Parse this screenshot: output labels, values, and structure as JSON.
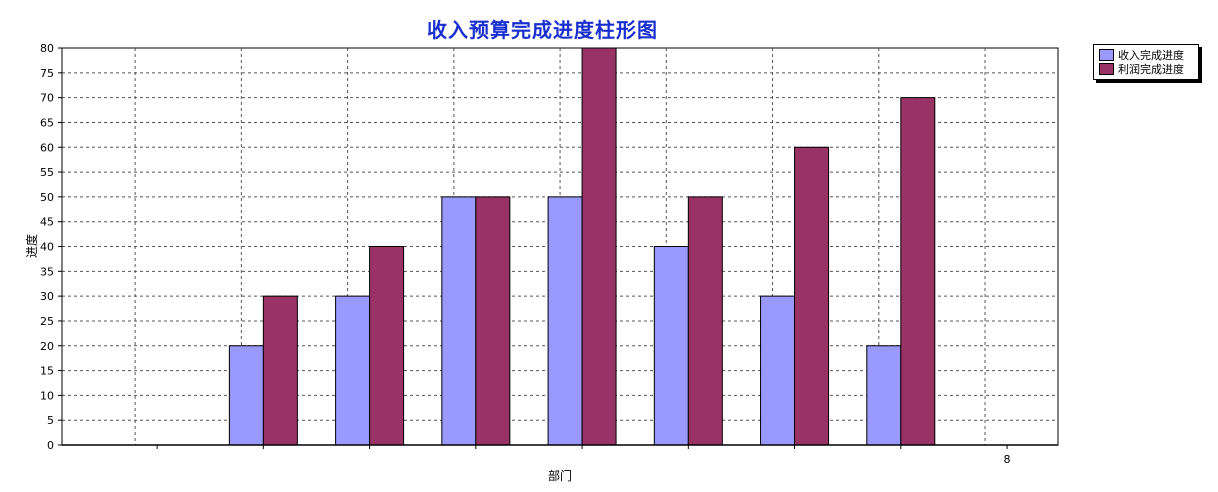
{
  "chart_data": {
    "type": "bar",
    "title": "收入预算完成进度柱形图",
    "ylabel": "进度",
    "xlabel": "部门",
    "ylim": [
      0,
      80
    ],
    "yticks": [
      0,
      5,
      10,
      15,
      20,
      25,
      30,
      35,
      40,
      45,
      50,
      55,
      60,
      65,
      70,
      75,
      80
    ],
    "grid": true,
    "legend_position": "top-right",
    "categories": [
      "",
      "",
      "",
      "",
      "",
      "",
      "",
      "",
      "8"
    ],
    "series": [
      {
        "name": "收入完成进度",
        "color": "#9999ff",
        "values": [
          0,
          20,
          30,
          50,
          50,
          40,
          30,
          20,
          0
        ]
      },
      {
        "name": "利润完成进度",
        "color": "#993366",
        "values": [
          0,
          30,
          40,
          50,
          80,
          50,
          60,
          70,
          0
        ]
      }
    ]
  }
}
